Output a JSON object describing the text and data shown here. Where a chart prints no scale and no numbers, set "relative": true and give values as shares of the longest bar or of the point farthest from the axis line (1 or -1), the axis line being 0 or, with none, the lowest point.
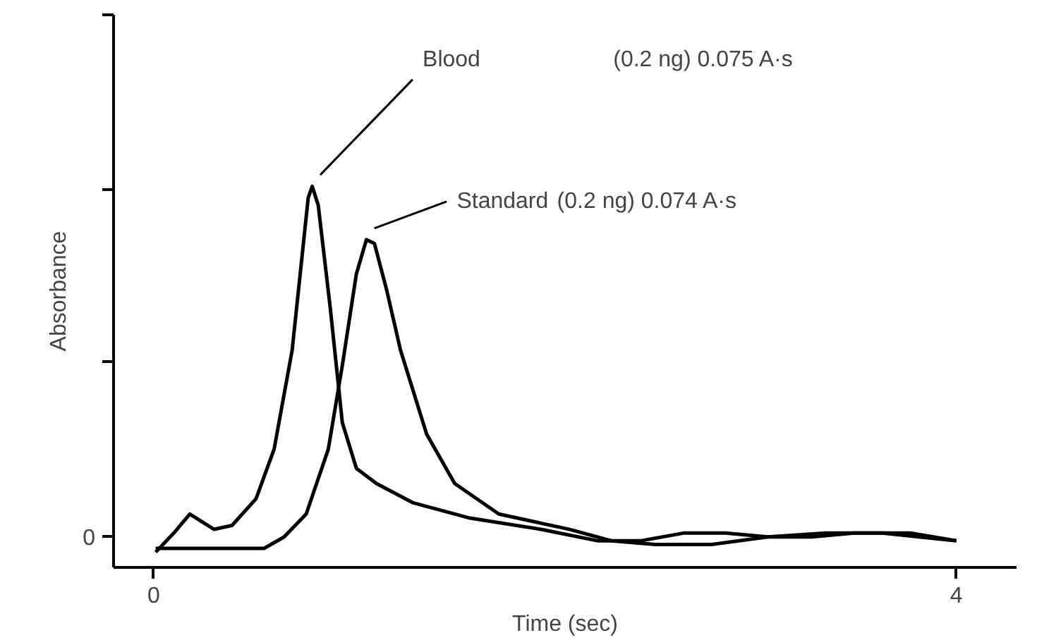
{
  "chart_data": {
    "type": "line",
    "relative": true,
    "xlabel": "Time (sec)",
    "ylabel": "Absorbance",
    "xlim": [
      -0.2,
      4.3
    ],
    "xticks": [
      0,
      4
    ],
    "grid": false,
    "legend": "top",
    "tick_labels": "x",
    "annotations": [
      "(0.2 ng) 0.075 A·s",
      "(0.2 ng) 0.074 A·s",
      "0"
    ],
    "series": [
      {
        "name": "Blood",
        "color": "#000000",
        "x": [
          0.01,
          0.1,
          0.18,
          0.24,
          0.3,
          0.39,
          0.51,
          0.6,
          0.69,
          0.74,
          0.77,
          0.79,
          0.82,
          0.88,
          0.94,
          1.01,
          1.11,
          1.29,
          1.57,
          1.93,
          2.21,
          2.43,
          2.64,
          2.85,
          3.06,
          3.28,
          3.49,
          3.77,
          4.0
        ],
        "values": [
          0.04,
          0.09,
          0.14,
          0.12,
          0.1,
          0.11,
          0.18,
          0.31,
          0.57,
          0.82,
          0.97,
          1.0,
          0.95,
          0.68,
          0.38,
          0.26,
          0.22,
          0.17,
          0.13,
          0.1,
          0.07,
          0.07,
          0.09,
          0.09,
          0.08,
          0.08,
          0.09,
          0.09,
          0.07
        ]
      },
      {
        "name": "Standard",
        "color": "#000000",
        "x": [
          0.01,
          0.37,
          0.55,
          0.65,
          0.76,
          0.87,
          0.94,
          1.01,
          1.06,
          1.1,
          1.16,
          1.23,
          1.36,
          1.5,
          1.72,
          2.07,
          2.28,
          2.5,
          2.78,
          3.06,
          3.35,
          3.63,
          4.0
        ],
        "values": [
          0.05,
          0.05,
          0.05,
          0.08,
          0.14,
          0.31,
          0.53,
          0.77,
          0.86,
          0.85,
          0.73,
          0.57,
          0.35,
          0.22,
          0.14,
          0.1,
          0.07,
          0.06,
          0.06,
          0.08,
          0.09,
          0.09,
          0.07
        ]
      }
    ]
  }
}
